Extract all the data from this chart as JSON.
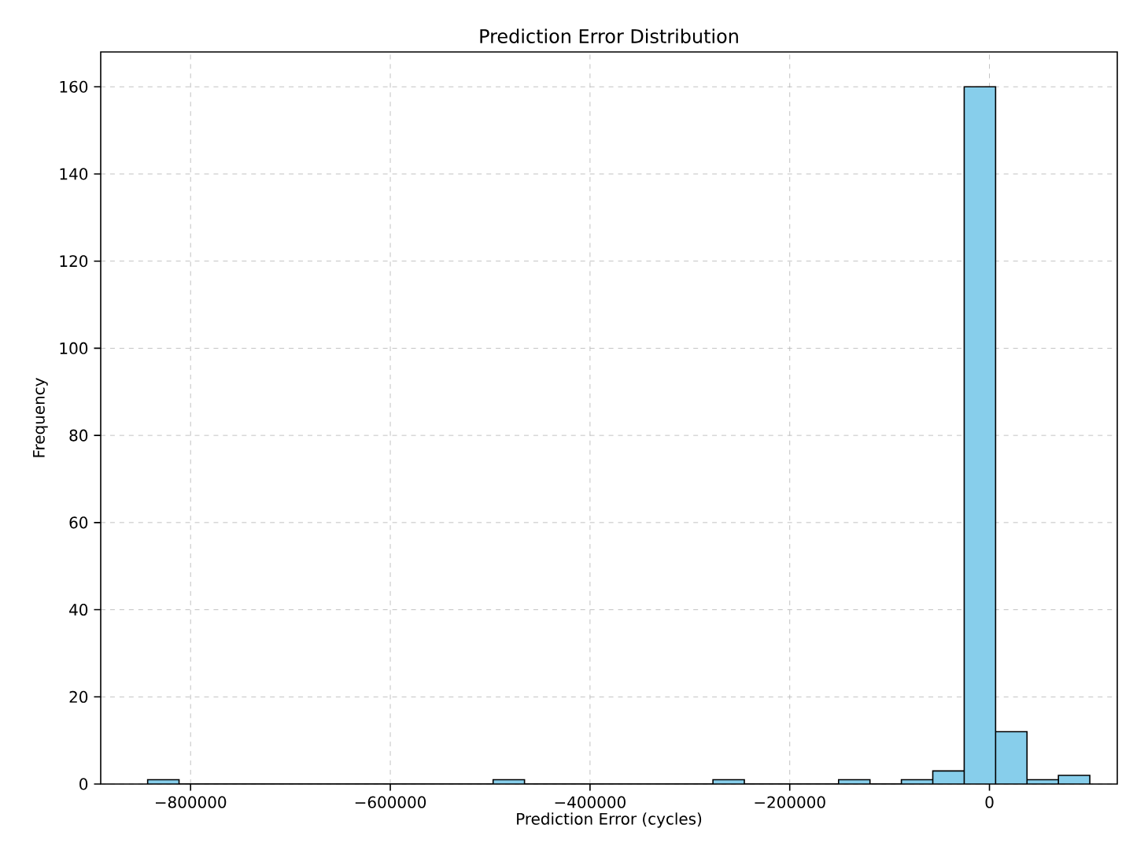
{
  "chart_data": {
    "type": "histogram",
    "title": "Prediction Error Distribution",
    "xlabel": "Prediction Error (cycles)",
    "ylabel": "Frequency",
    "bins": [
      -843000,
      -811550,
      -780100,
      -748650,
      -717200,
      -685750,
      -654300,
      -622850,
      -591400,
      -559950,
      -528500,
      -497050,
      -465600,
      -434150,
      -402700,
      -371250,
      -339800,
      -308350,
      -276900,
      -245450,
      -214000,
      -182550,
      -151100,
      -119650,
      -88200,
      -56750,
      -25300,
      6150,
      37600,
      69050,
      100500
    ],
    "values": [
      1,
      0,
      0,
      0,
      0,
      0,
      0,
      0,
      0,
      0,
      0,
      1,
      0,
      0,
      0,
      0,
      0,
      0,
      1,
      0,
      0,
      0,
      1,
      0,
      1,
      3,
      160,
      12,
      1,
      2
    ],
    "color": "#87ceeb",
    "xlim": [
      -890000,
      128000
    ],
    "ylim": [
      0,
      168
    ],
    "xticks": [
      {
        "value": -800000,
        "label": "−800000"
      },
      {
        "value": -600000,
        "label": "−600000"
      },
      {
        "value": -400000,
        "label": "−400000"
      },
      {
        "value": -200000,
        "label": "−200000"
      },
      0
    ],
    "yticks": [
      0,
      20,
      40,
      60,
      80,
      100,
      120,
      140,
      160
    ],
    "grid": true
  }
}
